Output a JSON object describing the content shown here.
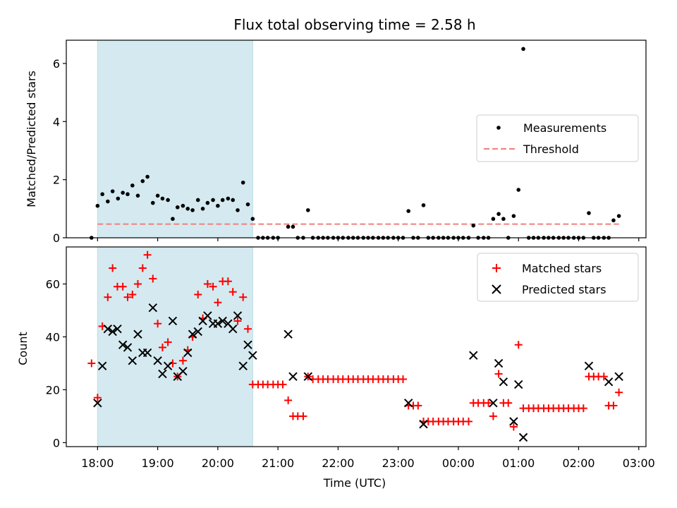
{
  "colors": {
    "shade": "#d4eaf0",
    "measurement": "#000000",
    "threshold": "#f08080",
    "matched": "#ff0000",
    "predicted": "#000000"
  },
  "chart_data": [
    {
      "type": "scatter",
      "title": "Flux total observing time = 2.58 h",
      "xlabel": "",
      "ylabel": "Matched/Predicted stars",
      "x_unit": "hours since 18:00 UTC",
      "ylim": [
        0,
        6.8
      ],
      "xlim": [
        -0.52,
        9.12
      ],
      "yticks": [
        0,
        2,
        4,
        6
      ],
      "shaded_span": [
        0,
        2.58
      ],
      "legend_position": "center-right",
      "series": [
        {
          "name": "Measurements",
          "kind": "points",
          "points": [
            [
              -0.1,
              0
            ],
            [
              0,
              1.1
            ],
            [
              0.08,
              1.5
            ],
            [
              0.17,
              1.25
            ],
            [
              0.25,
              1.6
            ],
            [
              0.34,
              1.35
            ],
            [
              0.42,
              1.55
            ],
            [
              0.5,
              1.5
            ],
            [
              0.58,
              1.8
            ],
            [
              0.67,
              1.45
            ],
            [
              0.75,
              1.95
            ],
            [
              0.83,
              2.1
            ],
            [
              0.92,
              1.2
            ],
            [
              1,
              1.45
            ],
            [
              1.08,
              1.35
            ],
            [
              1.17,
              1.3
            ],
            [
              1.25,
              0.65
            ],
            [
              1.33,
              1.05
            ],
            [
              1.42,
              1.1
            ],
            [
              1.5,
              1.0
            ],
            [
              1.58,
              0.95
            ],
            [
              1.67,
              1.3
            ],
            [
              1.75,
              1.0
            ],
            [
              1.83,
              1.2
            ],
            [
              1.92,
              1.3
            ],
            [
              2,
              1.1
            ],
            [
              2.08,
              1.3
            ],
            [
              2.17,
              1.35
            ],
            [
              2.25,
              1.3
            ],
            [
              2.33,
              0.95
            ],
            [
              2.42,
              1.9
            ],
            [
              2.5,
              1.15
            ],
            [
              2.58,
              0.65
            ],
            [
              2.67,
              0
            ],
            [
              2.75,
              0
            ],
            [
              2.83,
              0
            ],
            [
              2.92,
              0
            ],
            [
              3.0,
              0
            ],
            [
              3.17,
              0.38
            ],
            [
              3.25,
              0.38
            ],
            [
              3.33,
              0
            ],
            [
              3.42,
              0
            ],
            [
              3.5,
              0.95
            ],
            [
              3.58,
              0
            ],
            [
              3.67,
              0
            ],
            [
              3.75,
              0
            ],
            [
              3.83,
              0
            ],
            [
              3.92,
              0
            ],
            [
              4.0,
              0
            ],
            [
              4.08,
              0
            ],
            [
              4.17,
              0
            ],
            [
              4.25,
              0
            ],
            [
              4.33,
              0
            ],
            [
              4.42,
              0
            ],
            [
              4.5,
              0
            ],
            [
              4.58,
              0
            ],
            [
              4.67,
              0
            ],
            [
              4.75,
              0
            ],
            [
              4.83,
              0
            ],
            [
              4.92,
              0
            ],
            [
              5.0,
              0
            ],
            [
              5.08,
              0
            ],
            [
              5.17,
              0.92
            ],
            [
              5.25,
              0
            ],
            [
              5.33,
              0
            ],
            [
              5.42,
              1.12
            ],
            [
              5.5,
              0
            ],
            [
              5.58,
              0
            ],
            [
              5.67,
              0
            ],
            [
              5.75,
              0
            ],
            [
              5.83,
              0
            ],
            [
              5.92,
              0
            ],
            [
              6.0,
              0
            ],
            [
              6.08,
              0
            ],
            [
              6.17,
              0
            ],
            [
              6.25,
              0.42
            ],
            [
              6.33,
              0
            ],
            [
              6.42,
              0
            ],
            [
              6.5,
              0
            ],
            [
              6.58,
              0.65
            ],
            [
              6.67,
              0.82
            ],
            [
              6.75,
              0.65
            ],
            [
              6.83,
              0
            ],
            [
              6.92,
              0.75
            ],
            [
              7.0,
              1.65
            ],
            [
              7.08,
              6.5
            ],
            [
              7.17,
              0
            ],
            [
              7.25,
              0
            ],
            [
              7.33,
              0
            ],
            [
              7.42,
              0
            ],
            [
              7.5,
              0
            ],
            [
              7.58,
              0
            ],
            [
              7.67,
              0
            ],
            [
              7.75,
              0
            ],
            [
              7.83,
              0
            ],
            [
              7.92,
              0
            ],
            [
              8.0,
              0
            ],
            [
              8.08,
              0
            ],
            [
              8.17,
              0.85
            ],
            [
              8.25,
              0
            ],
            [
              8.33,
              0
            ],
            [
              8.42,
              0
            ],
            [
              8.5,
              0
            ],
            [
              8.58,
              0.6
            ],
            [
              8.67,
              0.75
            ]
          ]
        },
        {
          "name": "Threshold",
          "kind": "dashed-line",
          "points": [
            [
              0,
              0.47
            ],
            [
              8.67,
              0.47
            ]
          ]
        }
      ]
    },
    {
      "type": "scatter",
      "title": "",
      "xlabel": "Time (UTC)",
      "ylabel": "Count",
      "x_unit": "hours since 18:00 UTC",
      "ylim": [
        -1.5,
        74
      ],
      "xlim": [
        -0.52,
        9.12
      ],
      "yticks": [
        0,
        20,
        40,
        60
      ],
      "xticks": [
        0,
        1,
        2,
        3,
        4,
        5,
        6,
        7,
        8,
        9
      ],
      "xticklabels": [
        "18:00",
        "19:00",
        "20:00",
        "21:00",
        "22:00",
        "23:00",
        "00:00",
        "01:00",
        "02:00",
        "03:00"
      ],
      "shaded_span": [
        0,
        2.58
      ],
      "legend_position": "top-right",
      "series": [
        {
          "name": "Matched stars",
          "marker": "plus",
          "points": [
            [
              -0.1,
              30
            ],
            [
              0,
              17
            ],
            [
              0.08,
              44
            ],
            [
              0.17,
              55
            ],
            [
              0.25,
              66
            ],
            [
              0.33,
              59
            ],
            [
              0.42,
              59
            ],
            [
              0.5,
              55
            ],
            [
              0.58,
              56
            ],
            [
              0.67,
              60
            ],
            [
              0.75,
              66
            ],
            [
              0.83,
              71
            ],
            [
              0.92,
              62
            ],
            [
              1.0,
              45
            ],
            [
              1.08,
              36
            ],
            [
              1.17,
              38
            ],
            [
              1.25,
              30
            ],
            [
              1.33,
              25
            ],
            [
              1.42,
              31
            ],
            [
              1.5,
              35
            ],
            [
              1.58,
              40
            ],
            [
              1.67,
              56
            ],
            [
              1.75,
              47
            ],
            [
              1.83,
              60
            ],
            [
              1.92,
              59
            ],
            [
              2.0,
              53
            ],
            [
              2.08,
              61
            ],
            [
              2.17,
              61
            ],
            [
              2.25,
              57
            ],
            [
              2.33,
              46
            ],
            [
              2.42,
              55
            ],
            [
              2.5,
              43
            ],
            [
              2.58,
              22
            ],
            [
              2.67,
              22
            ],
            [
              2.75,
              22
            ],
            [
              2.83,
              22
            ],
            [
              2.92,
              22
            ],
            [
              3.0,
              22
            ],
            [
              3.08,
              22
            ],
            [
              3.17,
              16
            ],
            [
              3.25,
              10
            ],
            [
              3.33,
              10
            ],
            [
              3.42,
              10
            ],
            [
              3.5,
              25
            ],
            [
              3.58,
              24
            ],
            [
              3.67,
              24
            ],
            [
              3.75,
              24
            ],
            [
              3.83,
              24
            ],
            [
              3.92,
              24
            ],
            [
              4.0,
              24
            ],
            [
              4.08,
              24
            ],
            [
              4.17,
              24
            ],
            [
              4.25,
              24
            ],
            [
              4.33,
              24
            ],
            [
              4.42,
              24
            ],
            [
              4.5,
              24
            ],
            [
              4.58,
              24
            ],
            [
              4.67,
              24
            ],
            [
              4.75,
              24
            ],
            [
              4.83,
              24
            ],
            [
              4.92,
              24
            ],
            [
              5.0,
              24
            ],
            [
              5.08,
              24
            ],
            [
              5.17,
              14
            ],
            [
              5.25,
              14
            ],
            [
              5.33,
              14
            ],
            [
              5.42,
              8
            ],
            [
              5.5,
              8
            ],
            [
              5.58,
              8
            ],
            [
              5.67,
              8
            ],
            [
              5.75,
              8
            ],
            [
              5.83,
              8
            ],
            [
              5.92,
              8
            ],
            [
              6.0,
              8
            ],
            [
              6.08,
              8
            ],
            [
              6.17,
              8
            ],
            [
              6.25,
              15
            ],
            [
              6.33,
              15
            ],
            [
              6.42,
              15
            ],
            [
              6.5,
              15
            ],
            [
              6.58,
              10
            ],
            [
              6.67,
              26
            ],
            [
              6.75,
              15
            ],
            [
              6.83,
              15
            ],
            [
              6.92,
              6
            ],
            [
              7.0,
              37
            ],
            [
              7.08,
              13
            ],
            [
              7.17,
              13
            ],
            [
              7.25,
              13
            ],
            [
              7.33,
              13
            ],
            [
              7.42,
              13
            ],
            [
              7.5,
              13
            ],
            [
              7.58,
              13
            ],
            [
              7.67,
              13
            ],
            [
              7.75,
              13
            ],
            [
              7.83,
              13
            ],
            [
              7.92,
              13
            ],
            [
              8.0,
              13
            ],
            [
              8.08,
              13
            ],
            [
              8.17,
              25
            ],
            [
              8.25,
              25
            ],
            [
              8.33,
              25
            ],
            [
              8.42,
              25
            ],
            [
              8.5,
              14
            ],
            [
              8.58,
              14
            ],
            [
              8.67,
              19
            ]
          ]
        },
        {
          "name": "Predicted stars",
          "marker": "x",
          "points": [
            [
              0,
              15
            ],
            [
              0.08,
              29
            ],
            [
              0.17,
              43
            ],
            [
              0.25,
              42
            ],
            [
              0.33,
              43
            ],
            [
              0.42,
              37
            ],
            [
              0.5,
              36
            ],
            [
              0.58,
              31
            ],
            [
              0.67,
              41
            ],
            [
              0.75,
              34
            ],
            [
              0.83,
              34
            ],
            [
              0.92,
              51
            ],
            [
              1.0,
              31
            ],
            [
              1.08,
              26
            ],
            [
              1.17,
              29
            ],
            [
              1.25,
              46
            ],
            [
              1.33,
              25
            ],
            [
              1.42,
              27
            ],
            [
              1.5,
              34
            ],
            [
              1.58,
              41
            ],
            [
              1.67,
              42
            ],
            [
              1.75,
              46
            ],
            [
              1.83,
              48
            ],
            [
              1.92,
              45
            ],
            [
              2.0,
              45
            ],
            [
              2.08,
              46
            ],
            [
              2.17,
              45
            ],
            [
              2.25,
              43
            ],
            [
              2.33,
              48
            ],
            [
              2.42,
              29
            ],
            [
              2.5,
              37
            ],
            [
              2.58,
              33
            ],
            [
              3.17,
              41
            ],
            [
              3.25,
              25
            ],
            [
              3.5,
              25
            ],
            [
              5.17,
              15
            ],
            [
              5.42,
              7
            ],
            [
              6.25,
              33
            ],
            [
              6.58,
              15
            ],
            [
              6.67,
              30
            ],
            [
              6.75,
              23
            ],
            [
              6.92,
              8
            ],
            [
              7.0,
              22
            ],
            [
              7.08,
              2
            ],
            [
              8.17,
              29
            ],
            [
              8.5,
              23
            ],
            [
              8.67,
              25
            ]
          ]
        }
      ]
    }
  ]
}
